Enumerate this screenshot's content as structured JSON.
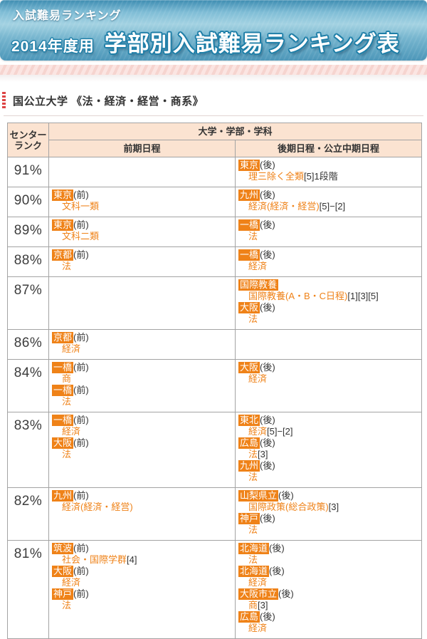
{
  "banner": {
    "small_title": "入試難易ランキング",
    "year_label": "2014年度用",
    "main_title": "学部別入試難易ランキング表"
  },
  "section": {
    "title": "国公立大学 《法・経済・経営・商系》"
  },
  "colors": {
    "accent_orange": "#ef8218",
    "header_peach": "#fbe3d1",
    "outline_blue": "#1f7fa8",
    "band_pink": "#fbe5e2",
    "marker_red": "#dd4444",
    "border_gray": "#a3a3a3"
  },
  "table": {
    "headers": {
      "rank_line1": "センター",
      "rank_line2": "ランク",
      "group": "大学・学部・学科",
      "col_early": "前期日程",
      "col_late": "後期日程・公立中期日程"
    },
    "rows": [
      {
        "rank": "91%",
        "early": [],
        "late": [
          {
            "univ": "東京",
            "suffix": "(後)",
            "dept": "理三除く全類",
            "note": "[5]1段階"
          }
        ]
      },
      {
        "rank": "90%",
        "early": [
          {
            "univ": "東京",
            "suffix": "(前)",
            "dept": "文科一類",
            "note": ""
          }
        ],
        "late": [
          {
            "univ": "九州",
            "suffix": "(後)",
            "dept": "経済(経済・経営)",
            "note": "[5]−[2]"
          }
        ]
      },
      {
        "rank": "89%",
        "early": [
          {
            "univ": "東京",
            "suffix": "(前)",
            "dept": "文科二類",
            "note": ""
          }
        ],
        "late": [
          {
            "univ": "一橋",
            "suffix": "(後)",
            "dept": "法",
            "note": ""
          }
        ]
      },
      {
        "rank": "88%",
        "early": [
          {
            "univ": "京都",
            "suffix": "(前)",
            "dept": "法",
            "note": ""
          }
        ],
        "late": [
          {
            "univ": "一橋",
            "suffix": "(後)",
            "dept": "経済",
            "note": ""
          }
        ]
      },
      {
        "rank": "87%",
        "early": [],
        "late": [
          {
            "univ": "国際教養",
            "suffix": "",
            "dept": "国際教養(A・B・C日程)",
            "note": "[1][3][5]"
          },
          {
            "univ": "大阪",
            "suffix": "(後)",
            "dept": "法",
            "note": ""
          }
        ]
      },
      {
        "rank": "86%",
        "early": [
          {
            "univ": "京都",
            "suffix": "(前)",
            "dept": "経済",
            "note": ""
          }
        ],
        "late": []
      },
      {
        "rank": "84%",
        "early": [
          {
            "univ": "一橋",
            "suffix": "(前)",
            "dept": "商",
            "note": ""
          },
          {
            "univ": "一橋",
            "suffix": "(前)",
            "dept": "法",
            "note": ""
          }
        ],
        "late": [
          {
            "univ": "大阪",
            "suffix": "(後)",
            "dept": "経済",
            "note": ""
          }
        ]
      },
      {
        "rank": "83%",
        "early": [
          {
            "univ": "一橋",
            "suffix": "(前)",
            "dept": "経済",
            "note": ""
          },
          {
            "univ": "大阪",
            "suffix": "(前)",
            "dept": "法",
            "note": ""
          }
        ],
        "late": [
          {
            "univ": "東北",
            "suffix": "(後)",
            "dept": "経済",
            "note": "[5]−[2]"
          },
          {
            "univ": "広島",
            "suffix": "(後)",
            "dept": "法",
            "note": "[3]"
          },
          {
            "univ": "九州",
            "suffix": "(後)",
            "dept": "法",
            "note": ""
          }
        ]
      },
      {
        "rank": "82%",
        "early": [
          {
            "univ": "九州",
            "suffix": "(前)",
            "dept": "経済(経済・経営)",
            "note": ""
          }
        ],
        "late": [
          {
            "univ": "山梨県立",
            "suffix": "(後)",
            "dept": "国際政策(総合政策)",
            "note": "[3]"
          },
          {
            "univ": "神戸",
            "suffix": "(後)",
            "dept": "法",
            "note": ""
          }
        ]
      },
      {
        "rank": "81%",
        "early": [
          {
            "univ": "筑波",
            "suffix": "(前)",
            "dept": "社会・国際学群",
            "note": "[4]"
          },
          {
            "univ": "大阪",
            "suffix": "(前)",
            "dept": "経済",
            "note": ""
          },
          {
            "univ": "神戸",
            "suffix": "(前)",
            "dept": "法",
            "note": ""
          }
        ],
        "late": [
          {
            "univ": "北海道",
            "suffix": "(後)",
            "dept": "法",
            "note": ""
          },
          {
            "univ": "北海道",
            "suffix": "(後)",
            "dept": "経済",
            "note": ""
          },
          {
            "univ": "大阪市立",
            "suffix": "(後)",
            "dept": "商",
            "note": "[3]"
          },
          {
            "univ": "広島",
            "suffix": "(後)",
            "dept": "経済",
            "note": ""
          }
        ]
      }
    ]
  }
}
